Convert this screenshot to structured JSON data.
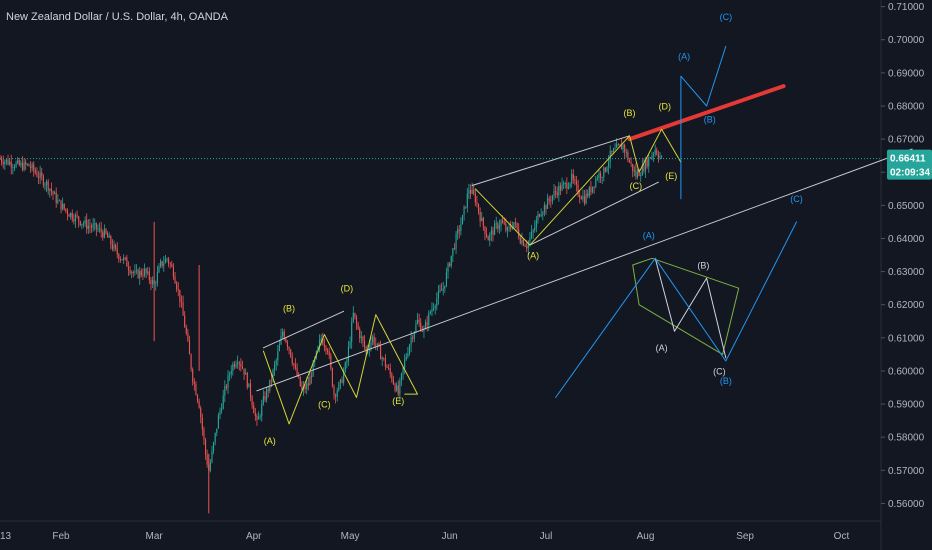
{
  "chart_data": {
    "type": "candlestick",
    "title": "New Zealand Dollar / U.S. Dollar, 4h, OANDA",
    "ylim": [
      0.555,
      0.712
    ],
    "y_ticks": [
      "0.71000",
      "0.70000",
      "0.69000",
      "0.68000",
      "0.67000",
      "0.66000",
      "0.65000",
      "0.64000",
      "0.63000",
      "0.62000",
      "0.61000",
      "0.60000",
      "0.59000",
      "0.58000",
      "0.57000",
      "0.56000"
    ],
    "x_labels": [
      {
        "label": "13",
        "day": 0
      },
      {
        "label": "Feb",
        "day": 19
      },
      {
        "label": "Mar",
        "day": 48
      },
      {
        "label": "Apr",
        "day": 79
      },
      {
        "label": "May",
        "day": 109
      },
      {
        "label": "Jun",
        "day": 140
      },
      {
        "label": "Jul",
        "day": 170
      },
      {
        "label": "Aug",
        "day": 201
      },
      {
        "label": "Sep",
        "day": 232
      },
      {
        "label": "Oct",
        "day": 262
      }
    ],
    "last_price": "0.66411",
    "countdown": "02:09:34",
    "price_path": [
      [
        0,
        0.664
      ],
      [
        3,
        0.663
      ],
      [
        6,
        0.662
      ],
      [
        9,
        0.662
      ],
      [
        12,
        0.659
      ],
      [
        15,
        0.656
      ],
      [
        18,
        0.651
      ],
      [
        21,
        0.648
      ],
      [
        24,
        0.646
      ],
      [
        27,
        0.644
      ],
      [
        30,
        0.643
      ],
      [
        33,
        0.641
      ],
      [
        36,
        0.636
      ],
      [
        39,
        0.633
      ],
      [
        42,
        0.629
      ],
      [
        45,
        0.63
      ],
      [
        48,
        0.626
      ],
      [
        50,
        0.632
      ],
      [
        52,
        0.634
      ],
      [
        54,
        0.63
      ],
      [
        56,
        0.622
      ],
      [
        58,
        0.611
      ],
      [
        60,
        0.598
      ],
      [
        62,
        0.59
      ],
      [
        64,
        0.575
      ],
      [
        65,
        0.57
      ],
      [
        66,
        0.575
      ],
      [
        68,
        0.586
      ],
      [
        70,
        0.594
      ],
      [
        72,
        0.601
      ],
      [
        74,
        0.604
      ],
      [
        76,
        0.6
      ],
      [
        78,
        0.593
      ],
      [
        80,
        0.584
      ],
      [
        82,
        0.591
      ],
      [
        84,
        0.596
      ],
      [
        86,
        0.603
      ],
      [
        88,
        0.612
      ],
      [
        90,
        0.607
      ],
      [
        92,
        0.6
      ],
      [
        94,
        0.594
      ],
      [
        96,
        0.596
      ],
      [
        98,
        0.603
      ],
      [
        100,
        0.61
      ],
      [
        102,
        0.607
      ],
      [
        104,
        0.593
      ],
      [
        106,
        0.596
      ],
      [
        108,
        0.603
      ],
      [
        110,
        0.617
      ],
      [
        112,
        0.611
      ],
      [
        114,
        0.606
      ],
      [
        116,
        0.61
      ],
      [
        118,
        0.606
      ],
      [
        120,
        0.602
      ],
      [
        122,
        0.598
      ],
      [
        124,
        0.593
      ],
      [
        126,
        0.603
      ],
      [
        128,
        0.61
      ],
      [
        130,
        0.615
      ],
      [
        132,
        0.612
      ],
      [
        134,
        0.618
      ],
      [
        136,
        0.622
      ],
      [
        138,
        0.625
      ],
      [
        140,
        0.633
      ],
      [
        142,
        0.64
      ],
      [
        144,
        0.646
      ],
      [
        146,
        0.655
      ],
      [
        148,
        0.652
      ],
      [
        150,
        0.645
      ],
      [
        152,
        0.64
      ],
      [
        154,
        0.643
      ],
      [
        156,
        0.645
      ],
      [
        158,
        0.642
      ],
      [
        160,
        0.645
      ],
      [
        162,
        0.64
      ],
      [
        164,
        0.638
      ],
      [
        166,
        0.642
      ],
      [
        168,
        0.648
      ],
      [
        170,
        0.65
      ],
      [
        172,
        0.653
      ],
      [
        174,
        0.655
      ],
      [
        176,
        0.656
      ],
      [
        178,
        0.658
      ],
      [
        180,
        0.654
      ],
      [
        182,
        0.652
      ],
      [
        184,
        0.655
      ],
      [
        186,
        0.659
      ],
      [
        188,
        0.66
      ],
      [
        190,
        0.665
      ],
      [
        192,
        0.667
      ],
      [
        194,
        0.668
      ],
      [
        196,
        0.663
      ],
      [
        198,
        0.659
      ],
      [
        200,
        0.661
      ],
      [
        202,
        0.664
      ],
      [
        204,
        0.667
      ],
      [
        206,
        0.664
      ]
    ],
    "trendlines": [
      {
        "name": "lower-channel",
        "color": "#c8cad0",
        "width": 1,
        "points": [
          [
            80,
            0.594
          ],
          [
            284,
            0.667
          ]
        ]
      },
      {
        "name": "upper-channel-1",
        "color": "#c8cad0",
        "width": 1,
        "points": [
          [
            82,
            0.607
          ],
          [
            107,
            0.618
          ]
        ]
      },
      {
        "name": "upper-channel-2",
        "color": "#c8cad0",
        "width": 1,
        "points": [
          [
            147,
            0.656
          ],
          [
            196,
            0.671
          ]
        ]
      },
      {
        "name": "inner-lower",
        "color": "#c8cad0",
        "width": 1,
        "points": [
          [
            165,
            0.638
          ],
          [
            205,
            0.657
          ]
        ]
      },
      {
        "name": "red-resistance",
        "color": "#e53935",
        "width": 4,
        "points": [
          [
            196,
            0.67
          ],
          [
            244,
            0.686
          ]
        ]
      },
      {
        "name": "yellow-triangle-1",
        "color": "#d4d436",
        "width": 1,
        "points": [
          [
            82,
            0.606
          ],
          [
            90,
            0.584
          ],
          [
            101,
            0.611
          ],
          [
            111,
            0.592
          ],
          [
            117,
            0.617
          ],
          [
            130,
            0.593
          ],
          [
            126,
            0.593
          ]
        ]
      },
      {
        "name": "yellow-triangle-2",
        "color": "#d4d436",
        "width": 1,
        "points": [
          [
            148,
            0.655
          ],
          [
            165,
            0.638
          ],
          [
            196,
            0.671
          ],
          [
            199,
            0.66
          ],
          [
            206,
            0.673
          ],
          [
            212,
            0.663
          ]
        ]
      },
      {
        "name": "blue-projection-1",
        "color": "#2196f3",
        "width": 1,
        "points": [
          [
            212,
            0.652
          ],
          [
            212,
            0.689
          ],
          [
            220,
            0.68
          ],
          [
            226,
            0.698
          ]
        ]
      },
      {
        "name": "green-diamond",
        "color": "#7cb342",
        "width": 1,
        "points": [
          [
            197,
            0.632
          ],
          [
            203,
            0.634
          ],
          [
            230,
            0.625
          ],
          [
            225,
            0.605
          ],
          [
            199,
            0.62
          ],
          [
            197,
            0.632
          ]
        ]
      },
      {
        "name": "white-zigzag",
        "color": "#d1d4dc",
        "width": 1,
        "points": [
          [
            204,
            0.634
          ],
          [
            210,
            0.612
          ],
          [
            220,
            0.628
          ],
          [
            226,
            0.604
          ]
        ]
      },
      {
        "name": "blue-projection-2",
        "color": "#2196f3",
        "width": 1,
        "points": [
          [
            173,
            0.592
          ],
          [
            204,
            0.634
          ],
          [
            226,
            0.603
          ],
          [
            248,
            0.645
          ]
        ]
      }
    ],
    "wave_labels": [
      {
        "text": "(A)",
        "day": 84,
        "y": 0.578,
        "color": "#e6e63c"
      },
      {
        "text": "(B)",
        "day": 90,
        "y": 0.618,
        "color": "#e6e63c"
      },
      {
        "text": "(C)",
        "day": 101,
        "y": 0.589,
        "color": "#e6e63c"
      },
      {
        "text": "(D)",
        "day": 108,
        "y": 0.624,
        "color": "#e6e63c"
      },
      {
        "text": "(E)",
        "day": 124,
        "y": 0.59,
        "color": "#e6e63c"
      },
      {
        "text": "(A)",
        "day": 166,
        "y": 0.634,
        "color": "#e6e63c"
      },
      {
        "text": "(B)",
        "day": 196,
        "y": 0.677,
        "color": "#e6e63c"
      },
      {
        "text": "(C)",
        "day": 198,
        "y": 0.655,
        "color": "#e6e63c"
      },
      {
        "text": "(D)",
        "day": 207,
        "y": 0.679,
        "color": "#e6e63c"
      },
      {
        "text": "(E)",
        "day": 209,
        "y": 0.658,
        "color": "#e6e63c"
      },
      {
        "text": "(A)",
        "day": 213,
        "y": 0.694,
        "color": "#2196f3"
      },
      {
        "text": "(B)",
        "day": 221,
        "y": 0.675,
        "color": "#2196f3"
      },
      {
        "text": "(C)",
        "day": 226,
        "y": 0.706,
        "color": "#2196f3"
      },
      {
        "text": "(A)",
        "day": 202,
        "y": 0.64,
        "color": "#2196f3"
      },
      {
        "text": "(B)",
        "day": 219,
        "y": 0.631,
        "color": "#d1d4dc"
      },
      {
        "text": "(A)",
        "day": 206,
        "y": 0.606,
        "color": "#d1d4dc"
      },
      {
        "text": "(C)",
        "day": 224,
        "y": 0.599,
        "color": "#d1d4dc"
      },
      {
        "text": "(B)",
        "day": 226,
        "y": 0.596,
        "color": "#2196f3"
      },
      {
        "text": "(C)",
        "day": 248,
        "y": 0.651,
        "color": "#2196f3"
      }
    ],
    "colors": {
      "background": "#131722",
      "up": "#26a69a",
      "down": "#ef5350",
      "axis_text": "#b2b5be",
      "price_line": "#26a69a",
      "price_badge": "#26a69a"
    }
  }
}
